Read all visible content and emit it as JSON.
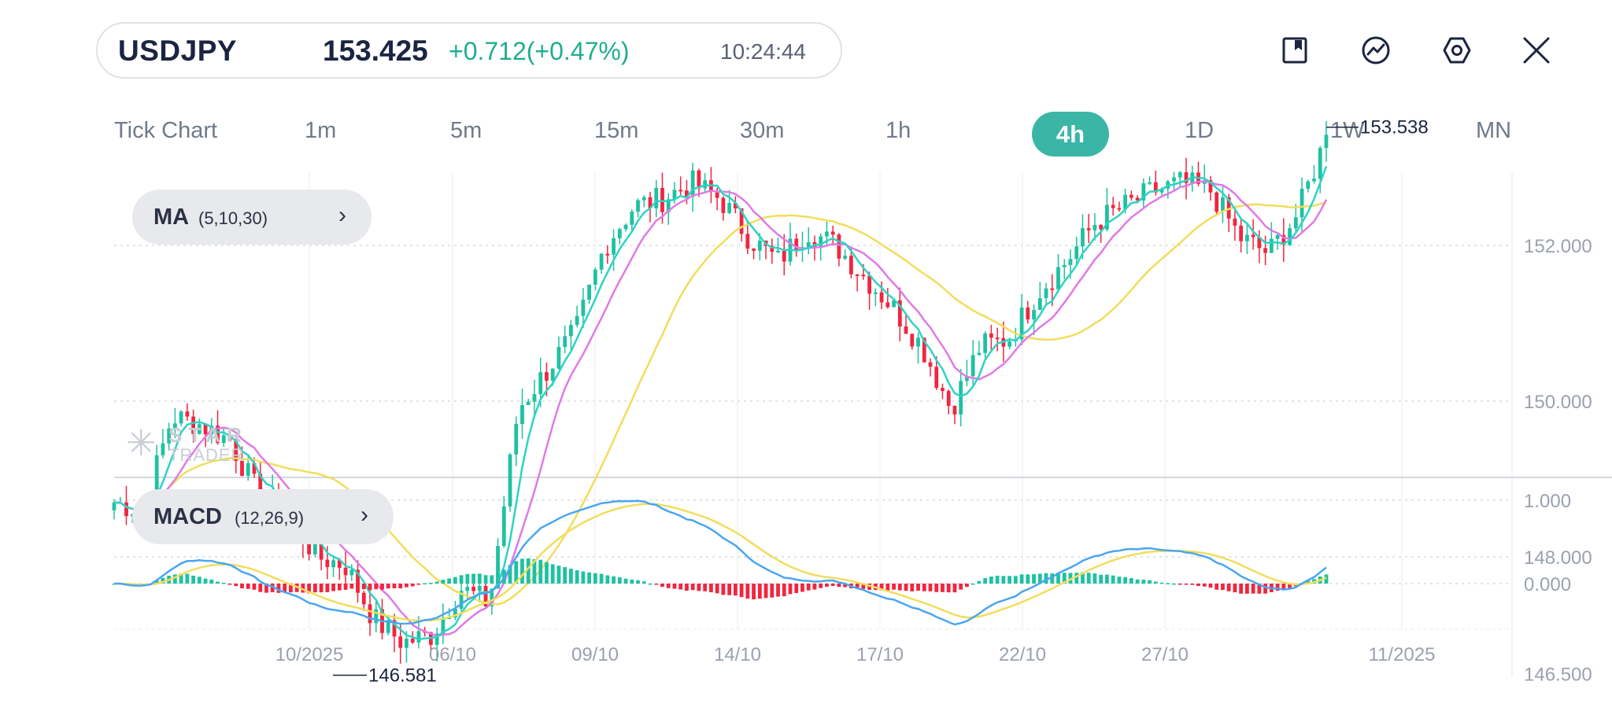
{
  "header": {
    "symbol": "USDJPY",
    "price": "153.425",
    "change": "+0.712(+0.47%)",
    "time": "10:24:44",
    "icons": [
      "bookmark-icon",
      "trend-chart-icon",
      "settings-hex-icon",
      "close-icon"
    ]
  },
  "timeframes": {
    "items": [
      "Tick Chart",
      "1m",
      "5m",
      "15m",
      "30m",
      "1h",
      "4h",
      "1D",
      "1W",
      "MN"
    ],
    "active": "4h"
  },
  "indicators": {
    "ma_name": "MA",
    "ma_params": "(5,10,30)",
    "macd_name": "MACD",
    "macd_params": "(12,26,9)"
  },
  "watermark": {
    "top": "STAR",
    "bottom": "TRADER"
  },
  "colors": {
    "up": "#1fc1a1",
    "down": "#f0263f",
    "ma5": "#2ed3c4",
    "ma10": "#e07ae6",
    "ma30": "#f2dd5c",
    "macd_line": "#4aa6f0",
    "signal_line": "#f2dd5c",
    "accent": "#3bb6a6"
  },
  "chart_data": {
    "type": "candlestick",
    "symbol": "USDJPY",
    "timeframe": "4h",
    "price_axis_ticks": [
      "152.000",
      "150.000",
      "148.000",
      "146.500"
    ],
    "price_axis_values": [
      152,
      150,
      148,
      146.5
    ],
    "macd_axis_ticks": [
      "1.000",
      "0.000"
    ],
    "macd_axis_values": [
      1.0,
      0.0
    ],
    "x_tick_labels": [
      "10/2025",
      "06/10",
      "09/10",
      "14/10",
      "17/10",
      "22/10",
      "27/10",
      "11/2025"
    ],
    "high_label": "153.538",
    "low_label": "146.581",
    "close_path": [
      148.7,
      148.6,
      149.8,
      149.7,
      149.5,
      148.8,
      148.6,
      148.0,
      147.9,
      147.2,
      146.9,
      147.0,
      147.6,
      147.4,
      149.9,
      150.4,
      150.9,
      152.0,
      152.5,
      152.6,
      152.8,
      152.6,
      152.1,
      151.8,
      152.2,
      152.0,
      151.6,
      151.2,
      150.7,
      149.9,
      150.7,
      150.8,
      151.4,
      151.8,
      152.3,
      152.5,
      152.7,
      152.8,
      152.7,
      152.1,
      151.9,
      152.4,
      153.4
    ]
  }
}
